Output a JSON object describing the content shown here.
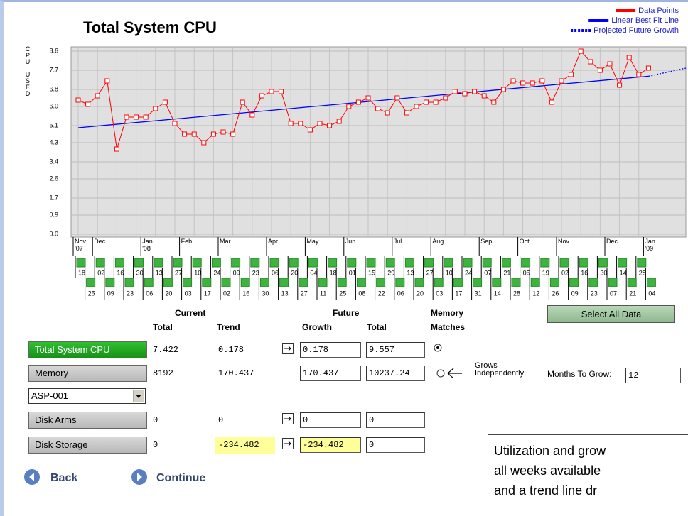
{
  "chart_data": {
    "type": "line",
    "title": "Total System CPU",
    "y_label": "CPU USED",
    "categories": [
      "18",
      "25",
      "02",
      "09",
      "16",
      "23",
      "30",
      "06",
      "13",
      "20",
      "27",
      "03",
      "10",
      "17",
      "24",
      "02",
      "09",
      "16",
      "23",
      "30",
      "06",
      "13",
      "20",
      "27",
      "04",
      "11",
      "18",
      "25",
      "01",
      "08",
      "15",
      "22",
      "29",
      "06",
      "13",
      "20",
      "27",
      "03",
      "10",
      "17",
      "24",
      "31",
      "07",
      "14",
      "21",
      "28",
      "05",
      "12",
      "19",
      "26",
      "02",
      "09",
      "16",
      "23",
      "30",
      "07",
      "14",
      "21",
      "28",
      "04"
    ],
    "month_labels": [
      "Nov '07",
      null,
      "Dec",
      null,
      null,
      null,
      null,
      "Jan '08",
      null,
      null,
      null,
      "Feb",
      null,
      null,
      null,
      "Mar",
      null,
      null,
      null,
      null,
      "Apr",
      null,
      null,
      null,
      "May",
      null,
      null,
      null,
      "Jun",
      null,
      null,
      null,
      null,
      "Jul",
      null,
      null,
      null,
      "Aug",
      null,
      null,
      null,
      null,
      "Sep",
      null,
      null,
      null,
      "Oct",
      null,
      null,
      null,
      "Nov",
      null,
      null,
      null,
      null,
      "Dec",
      null,
      null,
      null,
      "Jan '09"
    ],
    "series": [
      {
        "name": "Data Points",
        "color": "#ff0000",
        "values": [
          6.3,
          6.1,
          6.5,
          7.2,
          4.0,
          5.5,
          5.5,
          5.5,
          5.9,
          6.2,
          5.2,
          4.7,
          4.7,
          4.3,
          4.7,
          4.8,
          4.7,
          6.2,
          5.6,
          6.5,
          6.7,
          6.7,
          5.2,
          5.2,
          4.9,
          5.2,
          5.1,
          5.3,
          6.0,
          6.2,
          6.4,
          5.9,
          5.7,
          6.4,
          5.7,
          6.0,
          6.2,
          6.2,
          6.4,
          6.7,
          6.6,
          6.7,
          6.5,
          6.2,
          6.8,
          7.2,
          7.1,
          7.1,
          7.2,
          6.2,
          7.2,
          7.5,
          8.6,
          8.1,
          7.7,
          8.0,
          7.0,
          8.3,
          7.5,
          7.8
        ]
      }
    ],
    "trend": {
      "name": "Linear Best Fit Line",
      "color": "#0000ff",
      "values": [
        5.0,
        7.42
      ]
    },
    "projection": {
      "name": "Projected Future Growth",
      "color": "#0000ff",
      "values": [
        7.42,
        7.8
      ]
    },
    "ylim": [
      0,
      8.6
    ],
    "yticks": [
      {
        "value": 0,
        "label": "0.0"
      },
      0.9,
      1.7,
      2.6,
      3.4,
      4.3,
      5.1,
      {
        "value": 6,
        "label": "6.0"
      },
      6.8,
      7.7,
      8.6
    ],
    "grid": true,
    "legend": "top-right"
  },
  "form": {
    "headers": {
      "current": "Current",
      "future": "Future",
      "current_total": "Total",
      "current_trend": "Trend",
      "future_growth": "Growth",
      "future_total": "Total",
      "memory_matches": [
        "Memory",
        "Matches"
      ]
    },
    "select_all": "Select All Data",
    "rows": [
      {
        "label": "Total System CPU",
        "active": true,
        "total": 7.422,
        "trend": 0.178,
        "arrow": true,
        "growth": 0.178,
        "future_total": 9.557,
        "highlight": false
      },
      {
        "label": "Memory",
        "active": false,
        "total": 8192,
        "trend": 170.437,
        "arrow": false,
        "growth": 170.437,
        "future_total": 10237.24,
        "highlight": false
      },
      {
        "label": "Disk Arms",
        "active": false,
        "total": 0,
        "trend": 0,
        "arrow": true,
        "growth": 0,
        "future_total": 0,
        "highlight": false
      },
      {
        "label": "Disk Storage",
        "active": false,
        "total": 0,
        "trend": -234.482,
        "arrow": true,
        "growth": -234.482,
        "future_total": 0,
        "highlight": true
      }
    ],
    "asp": "ASP-001",
    "grows_independently": [
      "Grows",
      "Independently"
    ],
    "months_to_grow_label": "Months To Grow:",
    "months_to_grow": 12
  },
  "nav": {
    "back": "Back",
    "continue": "Continue"
  },
  "note": [
    "Utilization and grow",
    "all weeks available",
    "and a trend line dr"
  ]
}
